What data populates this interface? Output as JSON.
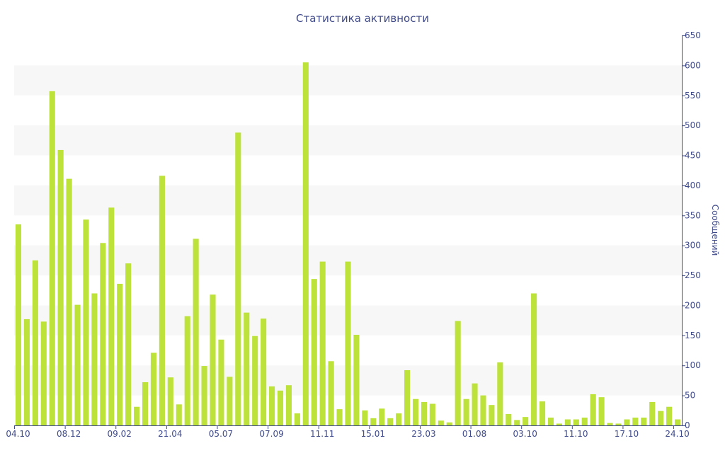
{
  "chart_data": {
    "type": "bar",
    "title": "Статистика активности",
    "xlabel": "",
    "ylabel": "Сообщений",
    "y_axis_position": "right",
    "ylim": [
      0,
      650
    ],
    "yticks": [
      0,
      50,
      100,
      150,
      200,
      250,
      300,
      350,
      400,
      450,
      500,
      550,
      600,
      650
    ],
    "x_tick_labels": [
      {
        "index": 0,
        "label": "04.10"
      },
      {
        "index": 6,
        "label": "08.12"
      },
      {
        "index": 12,
        "label": "09.02"
      },
      {
        "index": 18,
        "label": "21.04"
      },
      {
        "index": 24,
        "label": "05.07"
      },
      {
        "index": 30,
        "label": "07.09"
      },
      {
        "index": 36,
        "label": "11.11"
      },
      {
        "index": 42,
        "label": "15.01"
      },
      {
        "index": 48,
        "label": "23.03"
      },
      {
        "index": 54,
        "label": "01.08"
      },
      {
        "index": 60,
        "label": "03.10"
      },
      {
        "index": 66,
        "label": "11.10"
      },
      {
        "index": 72,
        "label": "17.10"
      },
      {
        "index": 78,
        "label": "24.10"
      }
    ],
    "grid": "alternating horizontal bands",
    "bar_color": "#bde23a",
    "band_color": "#f7f7f7",
    "axis_color": "#3f4a8a",
    "values": [
      335,
      177,
      275,
      173,
      557,
      459,
      411,
      201,
      343,
      220,
      304,
      363,
      236,
      270,
      31,
      72,
      121,
      416,
      80,
      35,
      182,
      311,
      99,
      218,
      143,
      81,
      488,
      188,
      149,
      178,
      65,
      58,
      67,
      20,
      605,
      244,
      273,
      107,
      27,
      273,
      151,
      25,
      12,
      28,
      12,
      20,
      92,
      44,
      39,
      36,
      8,
      5,
      174,
      44,
      70,
      50,
      34,
      105,
      19,
      9,
      14,
      220,
      40,
      13,
      3,
      10,
      10,
      13,
      52,
      47,
      4,
      3,
      10,
      13,
      13,
      39,
      24,
      31,
      10
    ]
  }
}
